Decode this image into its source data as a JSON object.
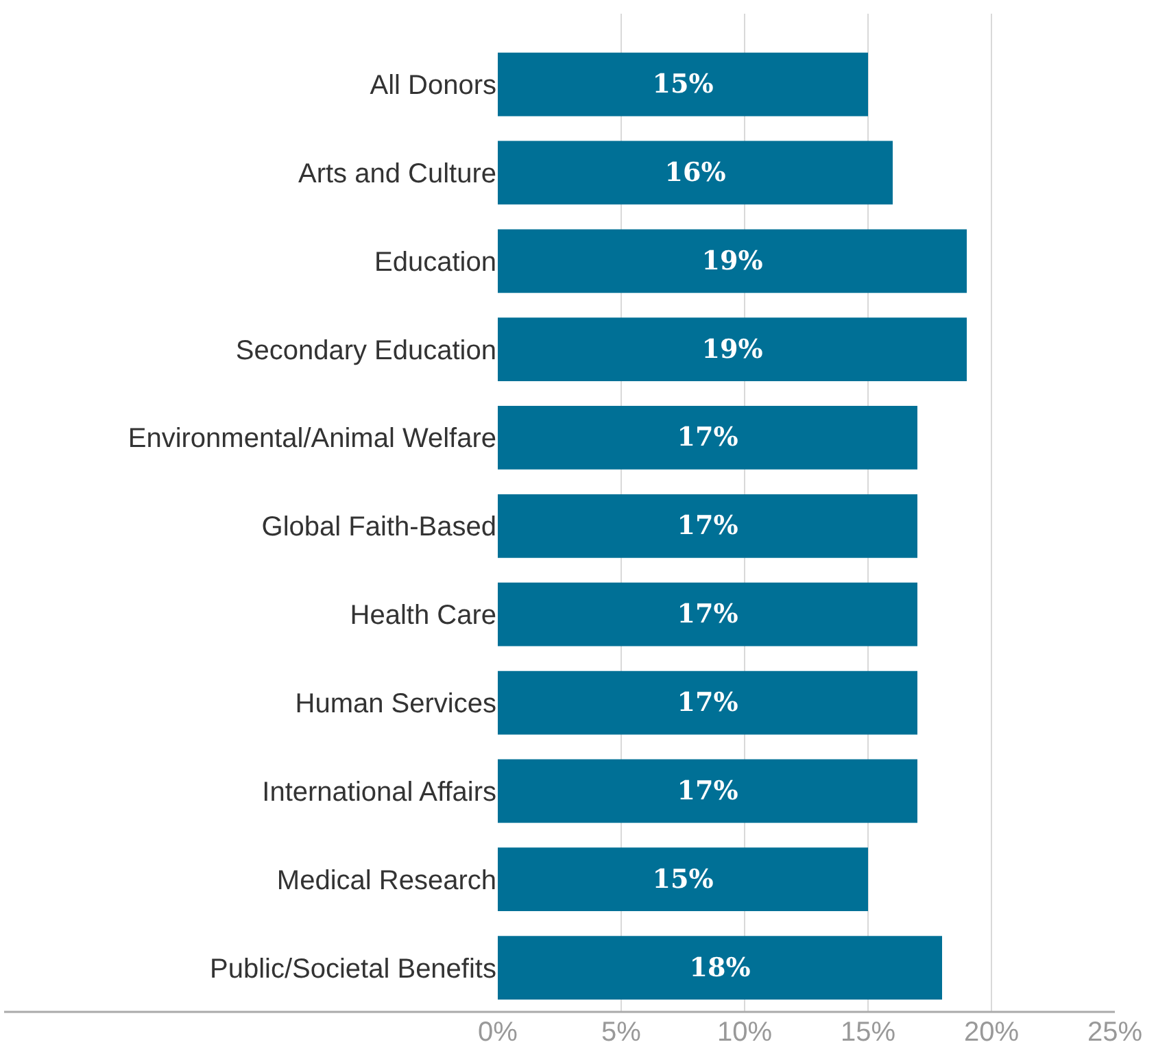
{
  "chart_data": {
    "type": "bar",
    "orientation": "horizontal",
    "categories": [
      "All Donors",
      "Arts and Culture",
      "Education",
      "Secondary Education",
      "Environmental/Animal Welfare",
      "Global Faith-Based",
      "Health Care",
      "Human Services",
      "International Affairs",
      "Medical Research",
      "Public/Societal Benefits"
    ],
    "values": [
      15,
      16,
      19,
      19,
      17,
      17,
      17,
      17,
      17,
      15,
      18
    ],
    "color": "#007096",
    "xlim": [
      0,
      25
    ],
    "xticks": [
      {
        "value": 0,
        "label": "0%"
      },
      {
        "value": 5,
        "label": "5%"
      },
      {
        "value": 10,
        "label": "10%"
      },
      {
        "value": 15,
        "label": "15%"
      },
      {
        "value": 20,
        "label": "20%"
      },
      {
        "value": 25,
        "label": "25%"
      }
    ],
    "value_labels": [
      "15%",
      "16%",
      "19%",
      "19%",
      "17%",
      "17%",
      "17%",
      "17%",
      "17%",
      "15%",
      "18%"
    ],
    "grid": "x"
  }
}
